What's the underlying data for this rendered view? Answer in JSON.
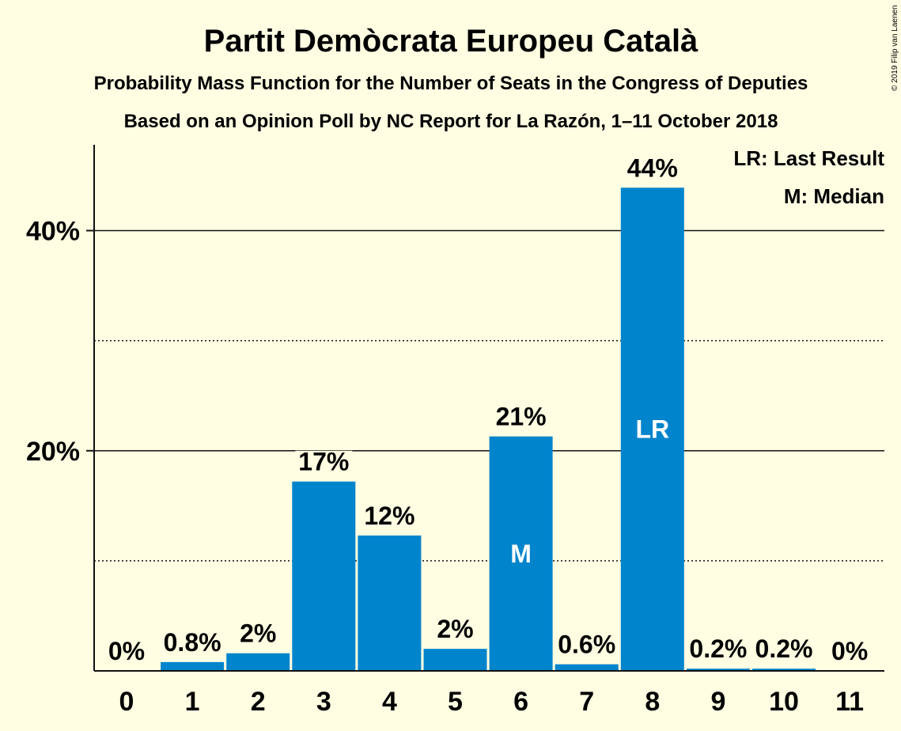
{
  "colors": {
    "background": "#FFFDE2",
    "bar": "#0084CC",
    "text": "#111111"
  },
  "chart_data": {
    "type": "bar",
    "title": "Partit Demòcrata Europeu Català",
    "subtitle": "Probability Mass Function for the Number of Seats in the Congress of Deputies",
    "subtitle2": "Based on an Opinion Poll by NC Report for La Razón, 1–11 October 2018",
    "copyright": "© 2019 Filip van Laenen",
    "categories": [
      "0",
      "1",
      "2",
      "3",
      "4",
      "5",
      "6",
      "7",
      "8",
      "9",
      "10",
      "11"
    ],
    "values": [
      0,
      0.8,
      1.6,
      17.2,
      12.3,
      2.0,
      21.3,
      0.6,
      43.9,
      0.2,
      0.2,
      0
    ],
    "data_labels": [
      "0%",
      "0.8%",
      "2%",
      "17%",
      "12%",
      "2%",
      "21%",
      "0.6%",
      "44%",
      "0.2%",
      "0.2%",
      "0%"
    ],
    "ylim": [
      0,
      47.8
    ],
    "yticks": [
      {
        "value": 20,
        "label": "20%"
      },
      {
        "value": 40,
        "label": "40%"
      }
    ],
    "grid": {
      "solid": [
        20,
        40
      ],
      "dotted": [
        10,
        30
      ]
    },
    "markers": [
      {
        "category": "6",
        "label": "M"
      },
      {
        "category": "8",
        "label": "LR"
      }
    ],
    "legend": [
      "LR: Last Result",
      "M: Median"
    ],
    "legend_position": "top-right"
  }
}
